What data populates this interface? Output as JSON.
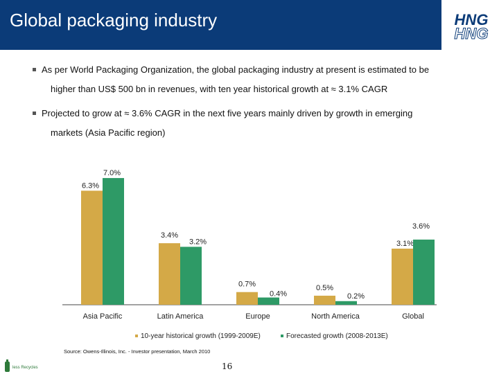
{
  "header": {
    "title": "Global packaging industry",
    "logo_text": "HNG"
  },
  "bullets": [
    {
      "line1": "As per World Packaging Organization, the global packaging industry at present is estimated to be",
      "line2": "higher than US$ 500 bn in revenues, with ten year historical growth at ≈ 3.1% CAGR"
    },
    {
      "line1": "Projected to grow at ≈ 3.6% CAGR in the next five years mainly driven by growth in emerging",
      "line2": "markets (Asia Pacific region)"
    }
  ],
  "chart_data": {
    "type": "bar",
    "categories": [
      "Asia Pacific",
      "Latin America",
      "Europe",
      "North America",
      "Global"
    ],
    "series": [
      {
        "name": "10-year historical growth (1999-2009E)",
        "values": [
          6.3,
          3.4,
          0.7,
          0.5,
          3.1
        ],
        "labels": [
          "6.3%",
          "3.4%",
          "0.7%",
          "0.5%",
          "3.1%"
        ]
      },
      {
        "name": "Forecasted growth (2008-2013E)",
        "values": [
          7.0,
          3.2,
          0.4,
          0.2,
          3.6
        ],
        "labels": [
          "7.0%",
          "3.2%",
          "0.4%",
          "0.2%",
          "3.6%"
        ]
      }
    ],
    "ylim": [
      0,
      7.5
    ]
  },
  "colors": {
    "header": "#0b3b78",
    "series1": "#d4a947",
    "series2": "#2e9a66"
  },
  "source": "Source: Owens-Illinois, Inc. - Investor presentation, March 2010",
  "page_number": "16",
  "footer_logo_text": "less Recycles"
}
